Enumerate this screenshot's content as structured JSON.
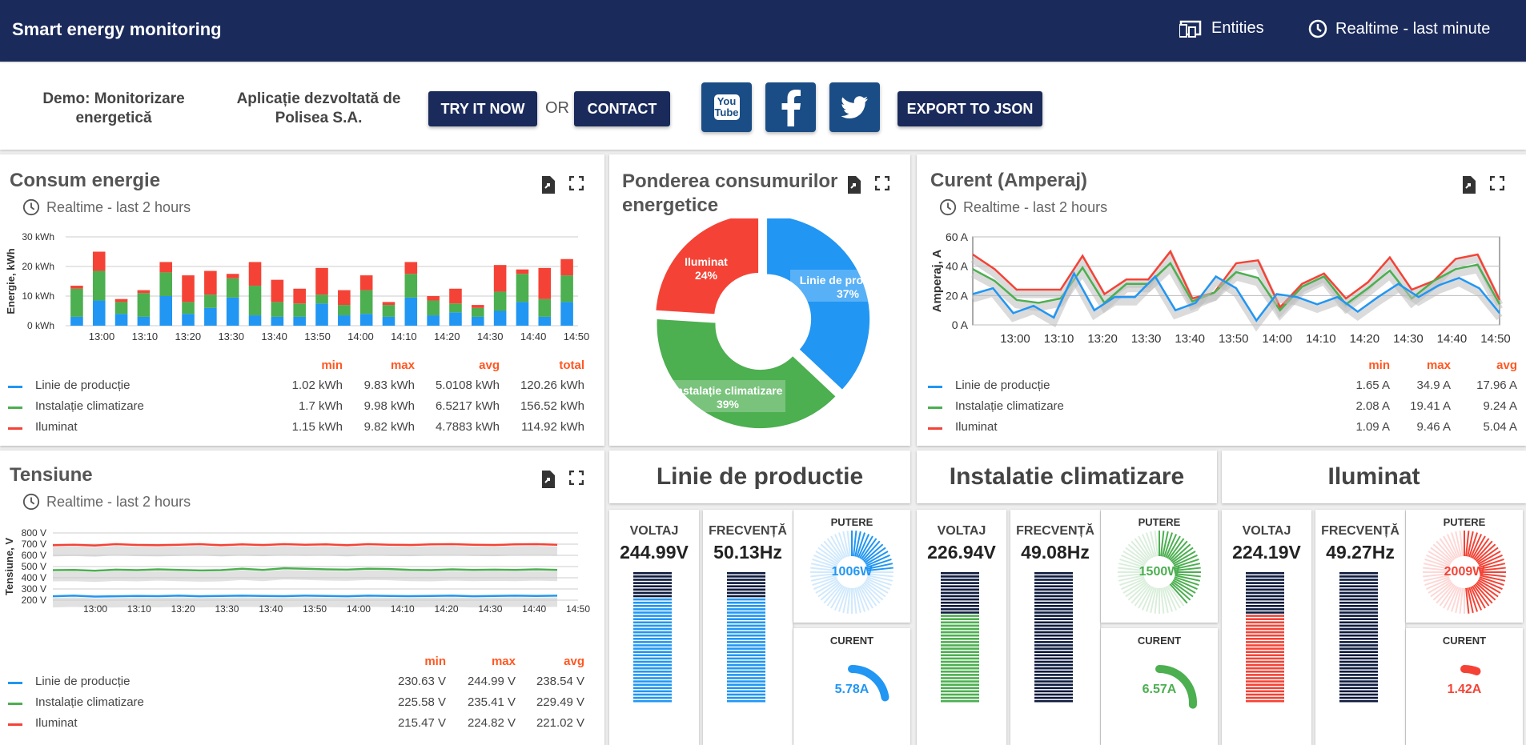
{
  "header": {
    "title": "Smart energy monitoring",
    "entities_label": "Entities",
    "timewindow_label": "Realtime - last minute"
  },
  "infobar": {
    "demo_text_1": "Demo: Monitorizare",
    "demo_text_2": "energetică",
    "company_text_1": "Aplicație dezvoltată de",
    "company_text_2": "Polisea S.A.",
    "try_label": "TRY IT NOW",
    "or_label": "OR",
    "contact_label": "CONTACT",
    "export_label": "EXPORT TO JSON",
    "youtube_label_1": "You",
    "youtube_label_2": "Tube"
  },
  "colors": {
    "blue": "#2196f3",
    "green": "#4caf50",
    "red": "#f44336",
    "navy": "#1a2a5b",
    "orange_header": "#ff5722"
  },
  "consum": {
    "title": "Consum energie",
    "subtitle": "Realtime - last 2 hours",
    "legend_headers": [
      "min",
      "max",
      "avg",
      "total"
    ],
    "legend": [
      {
        "name": "Linie de producție",
        "values": [
          "1.02 kWh",
          "9.83 kWh",
          "5.0108 kWh",
          "120.26 kWh"
        ]
      },
      {
        "name": "Instalație climatizare",
        "values": [
          "1.7 kWh",
          "9.98 kWh",
          "6.5217 kWh",
          "156.52 kWh"
        ]
      },
      {
        "name": "Iluminat",
        "values": [
          "1.15 kWh",
          "9.82 kWh",
          "4.7883 kWh",
          "114.92 kWh"
        ]
      }
    ]
  },
  "ponderea": {
    "title_1": "Ponderea consumurilor",
    "title_2": "energetice"
  },
  "curent": {
    "title": "Curent (Amperaj)",
    "subtitle": "Realtime - last 2 hours",
    "legend_headers": [
      "min",
      "max",
      "avg"
    ],
    "legend": [
      {
        "name": "Linie de producție",
        "values": [
          "1.65 A",
          "34.9 A",
          "17.96 A"
        ]
      },
      {
        "name": "Instalație climatizare",
        "values": [
          "2.08 A",
          "19.41 A",
          "9.24 A"
        ]
      },
      {
        "name": "Iluminat",
        "values": [
          "1.09 A",
          "9.46 A",
          "5.04 A"
        ]
      }
    ]
  },
  "tensiune": {
    "title": "Tensiune",
    "subtitle": "Realtime - last 2 hours",
    "legend_headers": [
      "min",
      "max",
      "avg"
    ],
    "legend": [
      {
        "name": "Linie de producție",
        "values": [
          "230.63 V",
          "244.99 V",
          "238.54 V"
        ]
      },
      {
        "name": "Instalație climatizare",
        "values": [
          "225.58 V",
          "235.41 V",
          "229.49 V"
        ]
      },
      {
        "name": "Iluminat",
        "values": [
          "215.47 V",
          "224.82 V",
          "221.02 V"
        ]
      }
    ]
  },
  "sections": [
    {
      "title": "Linie de productie",
      "voltaj_label": "VOLTAJ",
      "voltaj": "244.99V",
      "frecv_label": "FRECVENȚĂ",
      "frecv": "50.13Hz",
      "putere_label": "PUTERE",
      "putere": "1006W",
      "curent_label": "CURENT",
      "curent": "5.78A",
      "color": "#2196f3",
      "power_fraction": 0.25,
      "current_fraction": 0.45,
      "voltage_fraction": 0.82,
      "frequency_fraction": 0.82
    },
    {
      "title": "Instalatie climatizare",
      "voltaj_label": "VOLTAJ",
      "voltaj": "226.94V",
      "frecv_label": "FRECVENȚĂ",
      "frecv": "49.08Hz",
      "putere_label": "PUTERE",
      "putere": "1500W",
      "curent_label": "CURENT",
      "curent": "6.57A",
      "color": "#4caf50",
      "power_fraction": 0.4,
      "current_fraction": 0.52,
      "voltage_fraction": 0.7,
      "frequency_fraction": 0.0
    },
    {
      "title": "Iluminat",
      "voltaj_label": "VOLTAJ",
      "voltaj": "224.19V",
      "frecv_label": "FRECVENȚĂ",
      "frecv": "49.27Hz",
      "putere_label": "PUTERE",
      "putere": "2009W",
      "curent_label": "CURENT",
      "curent": "1.42A",
      "color": "#f44336",
      "power_fraction": 0.5,
      "current_fraction": 0.12,
      "voltage_fraction": 0.68,
      "frequency_fraction": 0.0
    }
  ],
  "chart_data": [
    {
      "type": "bar",
      "stacked": true,
      "title": "Consum energie",
      "ylabel": "Energie, kWh",
      "ylim": [
        0,
        30
      ],
      "yticks": [
        "0 kWh",
        "10 kWh",
        "20 kWh",
        "30 kWh"
      ],
      "xticks": [
        "13:00",
        "13:10",
        "13:20",
        "13:30",
        "13:40",
        "13:50",
        "14:00",
        "14:10",
        "14:20",
        "14:30",
        "14:40",
        "14:50"
      ],
      "series": [
        {
          "name": "Linie de producție",
          "color": "#2196f3",
          "values": [
            3,
            8.5,
            4,
            3,
            10,
            4,
            6,
            9.5,
            3.5,
            3,
            3,
            7.5,
            3.5,
            4,
            3,
            9.5,
            3.5,
            4.5,
            3,
            5,
            8,
            3,
            8
          ]
        },
        {
          "name": "Instalație climatizare",
          "color": "#4caf50",
          "values": [
            9.5,
            10,
            4,
            8,
            8,
            4,
            4.5,
            6.5,
            10,
            5,
            4.5,
            3,
            3.5,
            8,
            4,
            8,
            5,
            3,
            3,
            6.5,
            9.5,
            6,
            9
          ]
        },
        {
          "name": "Iluminat",
          "color": "#f44336",
          "values": [
            1,
            6.5,
            1,
            1,
            3.5,
            9,
            8,
            1.5,
            8,
            7.5,
            5,
            9,
            5,
            5,
            1,
            4,
            1.5,
            5,
            1,
            9,
            1.5,
            10.5,
            5.5
          ]
        }
      ]
    },
    {
      "type": "pie",
      "donut": true,
      "title": "Ponderea consumurilor energetice",
      "series": [
        {
          "name": "Linie de producție",
          "label": "Linie de producție",
          "percent": "37%",
          "value": 37,
          "color": "#2196f3"
        },
        {
          "name": "Instalație climatizare",
          "label": "Instalație climatizare",
          "percent": "39%",
          "value": 39,
          "color": "#4caf50"
        },
        {
          "name": "Iluminat",
          "label": "Iluminat",
          "percent": "24%",
          "value": 24,
          "color": "#f44336"
        }
      ]
    },
    {
      "type": "line",
      "title": "Curent (Amperaj)",
      "ylabel": "Amperaj, A",
      "ylim": [
        0,
        60
      ],
      "yticks": [
        "0 A",
        "20 A",
        "40 A",
        "60 A"
      ],
      "xticks": [
        "13:00",
        "13:10",
        "13:20",
        "13:30",
        "13:40",
        "13:50",
        "14:00",
        "14:10",
        "14:20",
        "14:30",
        "14:40",
        "14:50"
      ],
      "series": [
        {
          "name": "Linie de producție",
          "color": "#2196f3",
          "values": [
            21,
            25,
            8,
            13,
            5,
            35,
            10,
            19,
            19,
            33,
            10,
            15,
            33,
            25,
            3,
            21,
            19,
            14,
            19,
            9,
            19,
            28,
            19,
            27,
            32,
            25,
            8
          ]
        },
        {
          "name": "Instalație climatizare",
          "color": "#4caf50",
          "values": [
            38,
            30,
            17,
            15,
            18,
            39,
            15,
            28,
            28,
            42,
            16,
            22,
            36,
            32,
            10,
            26,
            33,
            14,
            25,
            37,
            18,
            30,
            38,
            41,
            14
          ]
        },
        {
          "name": "Iluminat",
          "color": "#f44336",
          "values": [
            48,
            38,
            24,
            24,
            24,
            47,
            21,
            31,
            31,
            50,
            18,
            22,
            42,
            44,
            12,
            28,
            35,
            18,
            29,
            46,
            24,
            30,
            45,
            48,
            17
          ]
        }
      ]
    },
    {
      "type": "line",
      "title": "Tensiune",
      "ylabel": "Tensiune, V",
      "ylim": [
        200,
        800
      ],
      "yticks": [
        "200 V",
        "300 V",
        "400 V",
        "500 V",
        "600 V",
        "700 V",
        "800 V"
      ],
      "xticks": [
        "13:00",
        "13:10",
        "13:20",
        "13:30",
        "13:40",
        "13:50",
        "14:00",
        "14:10",
        "14:20",
        "14:30",
        "14:40",
        "14:50"
      ],
      "series": [
        {
          "name": "Linie de producție",
          "color": "#2196f3",
          "values": [
            235,
            240,
            232,
            235,
            238,
            236,
            240,
            235,
            238,
            240,
            237,
            236,
            240,
            238,
            235,
            240,
            238,
            236,
            238,
            240,
            235,
            238,
            240,
            238,
            240
          ]
        },
        {
          "name": "Instalație climatizare",
          "color": "#4caf50",
          "values": [
            468,
            470,
            462,
            472,
            468,
            475,
            470,
            465,
            468,
            480,
            470,
            485,
            480,
            475,
            472,
            480,
            478,
            470,
            468,
            475,
            470,
            472,
            470,
            475,
            470
          ]
        },
        {
          "name": "Iluminat",
          "color": "#f44336",
          "values": [
            690,
            695,
            688,
            700,
            693,
            690,
            695,
            700,
            690,
            698,
            692,
            700,
            695,
            698,
            690,
            700,
            695,
            692,
            698,
            700,
            695,
            692,
            698,
            700,
            695
          ]
        }
      ]
    }
  ]
}
